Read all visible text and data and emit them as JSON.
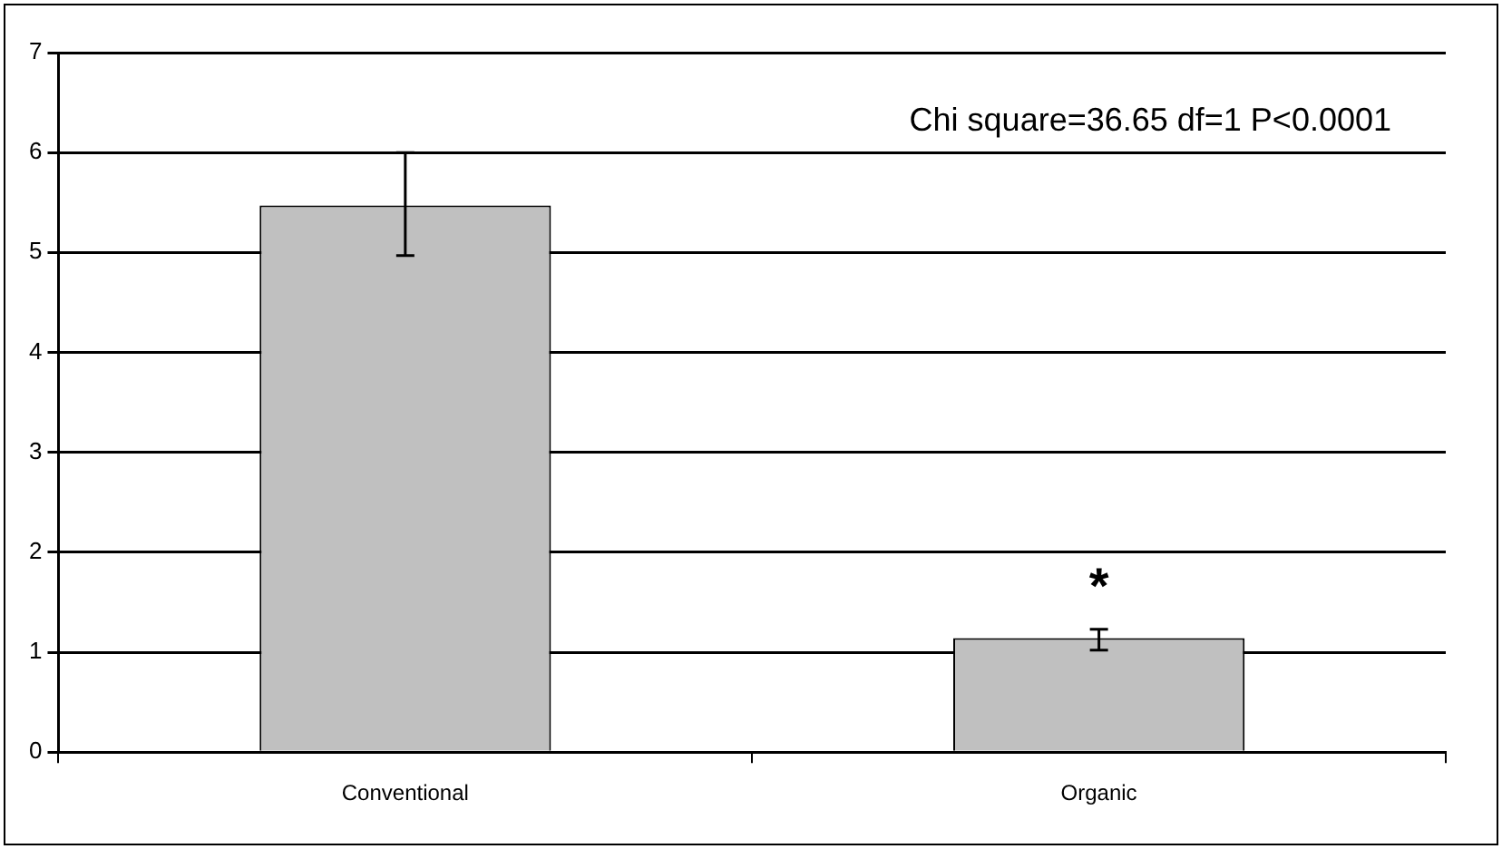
{
  "chart_data": {
    "type": "bar",
    "categories": [
      "Conventional",
      "Organic"
    ],
    "values": [
      5.47,
      1.14
    ],
    "color": "#c0c0c0",
    "errors": [
      [
        4.97,
        6.0
      ],
      [
        1.02,
        1.23
      ]
    ],
    "ylim": [
      0,
      7
    ],
    "yticks": [
      0,
      1,
      2,
      3,
      4,
      5,
      6,
      7
    ],
    "grid": "y",
    "legend": false,
    "annotations": [
      "Chi square=36.65 df=1 P<0.0001",
      "*"
    ]
  }
}
